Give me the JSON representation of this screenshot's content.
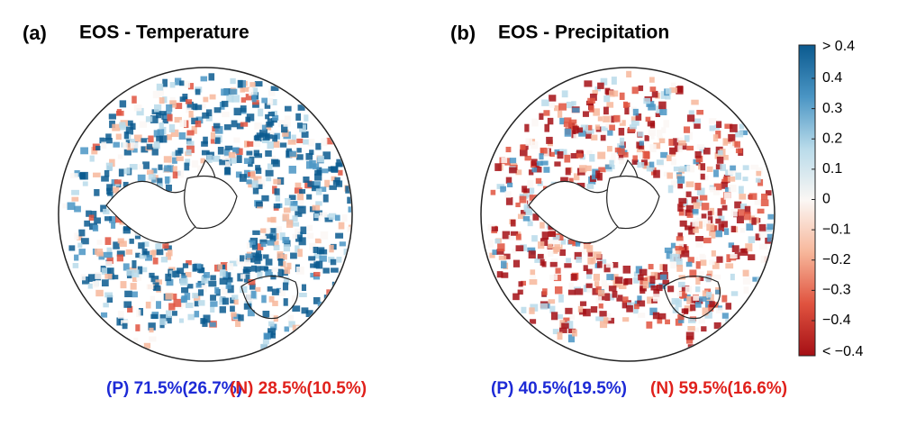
{
  "panels": [
    {
      "label": "(a)",
      "title": "EOS - Temperature",
      "positive": "(P) 71.5%(26.7%)",
      "negative": "(N) 28.5%(10.5%)"
    },
    {
      "label": "(b)",
      "title": "EOS - Precipitation",
      "positive": "(P) 40.5%(19.5%)",
      "negative": "(N) 59.5%(16.6%)"
    }
  ],
  "colorbar": {
    "upper_label": "> 0.4",
    "lower_label": "< −0.4",
    "lim": [
      -0.4,
      0.4
    ],
    "ticks": [
      0.4,
      0.3,
      0.2,
      0.1,
      0,
      {
        "value": -0.1,
        "label": "−0.1"
      },
      {
        "value": -0.2,
        "label": "−0.2"
      },
      {
        "value": -0.3,
        "label": "−0.3"
      },
      {
        "value": -0.4,
        "label": "−0.4"
      }
    ],
    "colors": [
      "#a50f15",
      "#e0533f",
      "#f7b79b",
      "#fbf7f4",
      "#b9dbea",
      "#4a95c4",
      "#0b5a8f"
    ]
  }
}
